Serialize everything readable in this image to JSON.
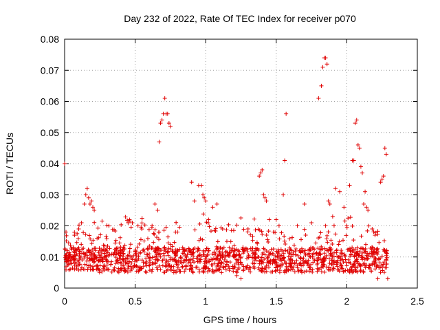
{
  "chart_data": {
    "type": "scatter",
    "title": "Day 232 of 2022, Rate Of TEC Index for receiver p070",
    "xlabel": "GPS time / hours",
    "ylabel": "ROTI / TECUs",
    "xlim": [
      0,
      2.5
    ],
    "ylim": [
      0,
      0.08
    ],
    "xticks": [
      "0",
      "0.5",
      "1",
      "1.5",
      "2",
      "2.5"
    ],
    "yticks": [
      "0",
      "0.01",
      "0.02",
      "0.03",
      "0.04",
      "0.05",
      "0.06",
      "0.07",
      "0.08"
    ],
    "grid": true,
    "marker": "+",
    "color": "#e00000",
    "series": [
      {
        "name": "ROTI",
        "x": [
          0.0,
          0.01,
          0.02,
          0.03,
          0.05,
          0.07,
          0.1,
          0.12,
          0.14,
          0.15,
          0.16,
          0.17,
          0.18,
          0.19,
          0.2,
          0.21,
          0.22,
          0.23,
          0.25,
          0.3,
          0.35,
          0.4,
          0.45,
          0.46,
          0.48,
          0.5,
          0.52,
          0.55,
          0.6,
          0.62,
          0.64,
          0.66,
          0.67,
          0.68,
          0.69,
          0.7,
          0.71,
          0.72,
          0.73,
          0.74,
          0.75,
          0.8,
          0.85,
          0.9,
          0.92,
          0.95,
          0.97,
          0.98,
          0.99,
          1.0,
          1.02,
          1.05,
          1.08,
          1.1,
          1.12,
          1.15,
          1.18,
          1.2,
          1.22,
          1.25,
          1.3,
          1.35,
          1.38,
          1.39,
          1.4,
          1.41,
          1.42,
          1.43,
          1.45,
          1.48,
          1.5,
          1.52,
          1.55,
          1.56,
          1.57,
          1.6,
          1.65,
          1.7,
          1.75,
          1.8,
          1.82,
          1.83,
          1.84,
          1.85,
          1.86,
          1.87,
          1.88,
          1.9,
          1.92,
          1.95,
          1.98,
          2.0,
          2.02,
          2.04,
          2.05,
          2.06,
          2.07,
          2.08,
          2.09,
          2.1,
          2.11,
          2.12,
          2.13,
          2.14,
          2.15,
          2.18,
          2.2,
          2.22,
          2.24,
          2.25,
          2.26,
          2.27,
          2.28,
          2.29
        ],
        "y": [
          0.04,
          0.018,
          0.009,
          0.011,
          0.008,
          0.017,
          0.019,
          0.021,
          0.027,
          0.03,
          0.032,
          0.029,
          0.027,
          0.028,
          0.026,
          0.025,
          0.01,
          0.016,
          0.012,
          0.009,
          0.011,
          0.008,
          0.021,
          0.022,
          0.021,
          0.007,
          0.02,
          0.009,
          0.011,
          0.02,
          0.027,
          0.025,
          0.047,
          0.053,
          0.054,
          0.056,
          0.061,
          0.056,
          0.056,
          0.053,
          0.052,
          0.018,
          0.012,
          0.034,
          0.028,
          0.033,
          0.033,
          0.03,
          0.029,
          0.028,
          0.022,
          0.026,
          0.027,
          0.006,
          0.019,
          0.015,
          0.012,
          0.01,
          0.004,
          0.003,
          0.019,
          0.01,
          0.036,
          0.037,
          0.038,
          0.03,
          0.029,
          0.028,
          0.022,
          0.018,
          0.022,
          0.02,
          0.03,
          0.041,
          0.056,
          0.008,
          0.02,
          0.027,
          0.021,
          0.061,
          0.065,
          0.071,
          0.074,
          0.074,
          0.072,
          0.028,
          0.027,
          0.023,
          0.032,
          0.031,
          0.026,
          0.02,
          0.033,
          0.041,
          0.041,
          0.053,
          0.054,
          0.046,
          0.045,
          0.039,
          0.037,
          0.027,
          0.031,
          0.026,
          0.025,
          0.019,
          0.017,
          0.003,
          0.034,
          0.035,
          0.036,
          0.045,
          0.043,
          0.003
        ]
      }
    ]
  }
}
